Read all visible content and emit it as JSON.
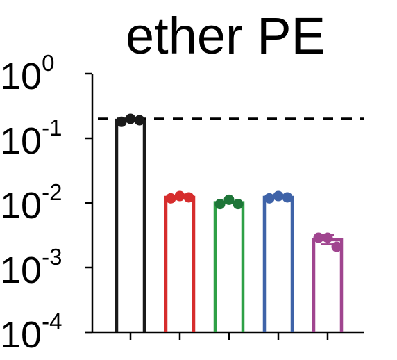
{
  "chart_data": {
    "type": "bar",
    "title": "ether PE",
    "xlabel": "",
    "ylabel": "",
    "y_scale": "log",
    "ylim": [
      0.0001,
      1
    ],
    "y_ticks": [
      {
        "base": "10",
        "exponent": "0",
        "value": 1
      },
      {
        "base": "10",
        "exponent": "-1",
        "value": 0.1
      },
      {
        "base": "10",
        "exponent": "-2",
        "value": 0.01
      },
      {
        "base": "10",
        "exponent": "-3",
        "value": 0.001
      },
      {
        "base": "10",
        "exponent": "-4",
        "value": 0.0001
      }
    ],
    "reference_line": {
      "value": 0.2,
      "style": "dashed",
      "color": "#000000"
    },
    "grid": false,
    "bars": [
      {
        "value": 0.19,
        "color": "#1a1a1a",
        "points": [
          0.18,
          0.2,
          0.19
        ]
      },
      {
        "value": 0.0122,
        "color": "#d62d2d",
        "points": [
          0.0118,
          0.0128,
          0.0122
        ]
      },
      {
        "value": 0.0101,
        "color": "#2ea046",
        "points": [
          0.0096,
          0.0112,
          0.0096
        ]
      },
      {
        "value": 0.0122,
        "color": "#3f63a8",
        "points": [
          0.0118,
          0.0128,
          0.0122
        ]
      },
      {
        "value": 0.0027,
        "color": "#a0458f",
        "points": [
          0.0029,
          0.0029,
          0.0021
        ],
        "error": [
          0.0023,
          0.0032
        ]
      }
    ],
    "marker_colors": [
      "#1a1a1a",
      "#d62d2d",
      "#1e7538",
      "#3f63a8",
      "#a0458f"
    ]
  }
}
